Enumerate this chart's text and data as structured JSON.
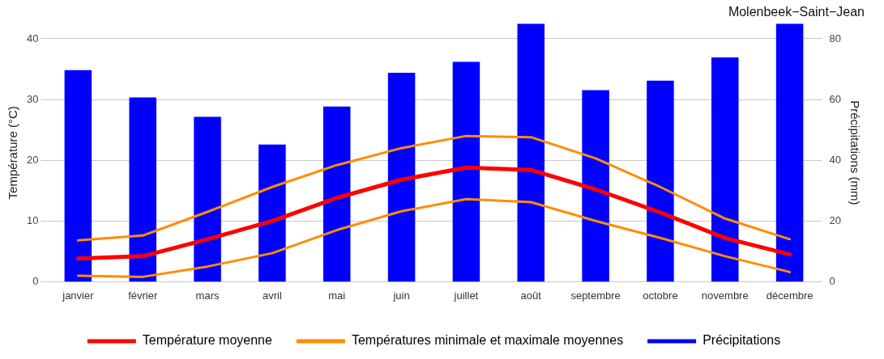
{
  "chart_data": {
    "type": "bar",
    "title": "Molenbeek−Saint−Jean",
    "ylabel": "Température (°C)",
    "y2label": "Précipitations (mm)",
    "categories": [
      "janvier",
      "février",
      "mars",
      "avril",
      "mai",
      "juin",
      "juillet",
      "août",
      "septembre",
      "octobre",
      "novembre",
      "décembre"
    ],
    "series": [
      {
        "name": "Température moyenne",
        "type": "line",
        "color": "#ff0000",
        "values": [
          3.8,
          4.2,
          7.0,
          10.0,
          13.8,
          16.8,
          18.8,
          18.4,
          15.2,
          11.4,
          7.2,
          4.5
        ]
      },
      {
        "name": "Températures minimale et maximale moyennes",
        "type": "line",
        "color": "#ff8c00",
        "values": [
          6.8,
          7.6,
          11.5,
          15.6,
          19.2,
          22.0,
          24.0,
          23.8,
          20.3,
          15.6,
          10.4,
          7.0
        ]
      },
      {
        "type": "line",
        "color": "#ff8c00",
        "values": [
          1.0,
          0.8,
          2.5,
          4.7,
          8.5,
          11.6,
          13.6,
          13.1,
          10.0,
          7.2,
          4.2,
          1.6
        ]
      },
      {
        "name": "Précipitations",
        "axis": "y2",
        "color": "#0000ff",
        "values": [
          69.7,
          60.7,
          54.3,
          45.2,
          57.7,
          68.8,
          72.4,
          85,
          63.1,
          66.2,
          73.9,
          85
        ]
      }
    ],
    "ylim": [
      0,
      42.5
    ],
    "yticks": [
      0,
      10,
      20,
      30,
      40
    ],
    "y2lim": [
      0,
      85
    ],
    "y2ticks": [
      0,
      20,
      40,
      60,
      80
    ],
    "grid": "y",
    "legend": "bottom"
  }
}
